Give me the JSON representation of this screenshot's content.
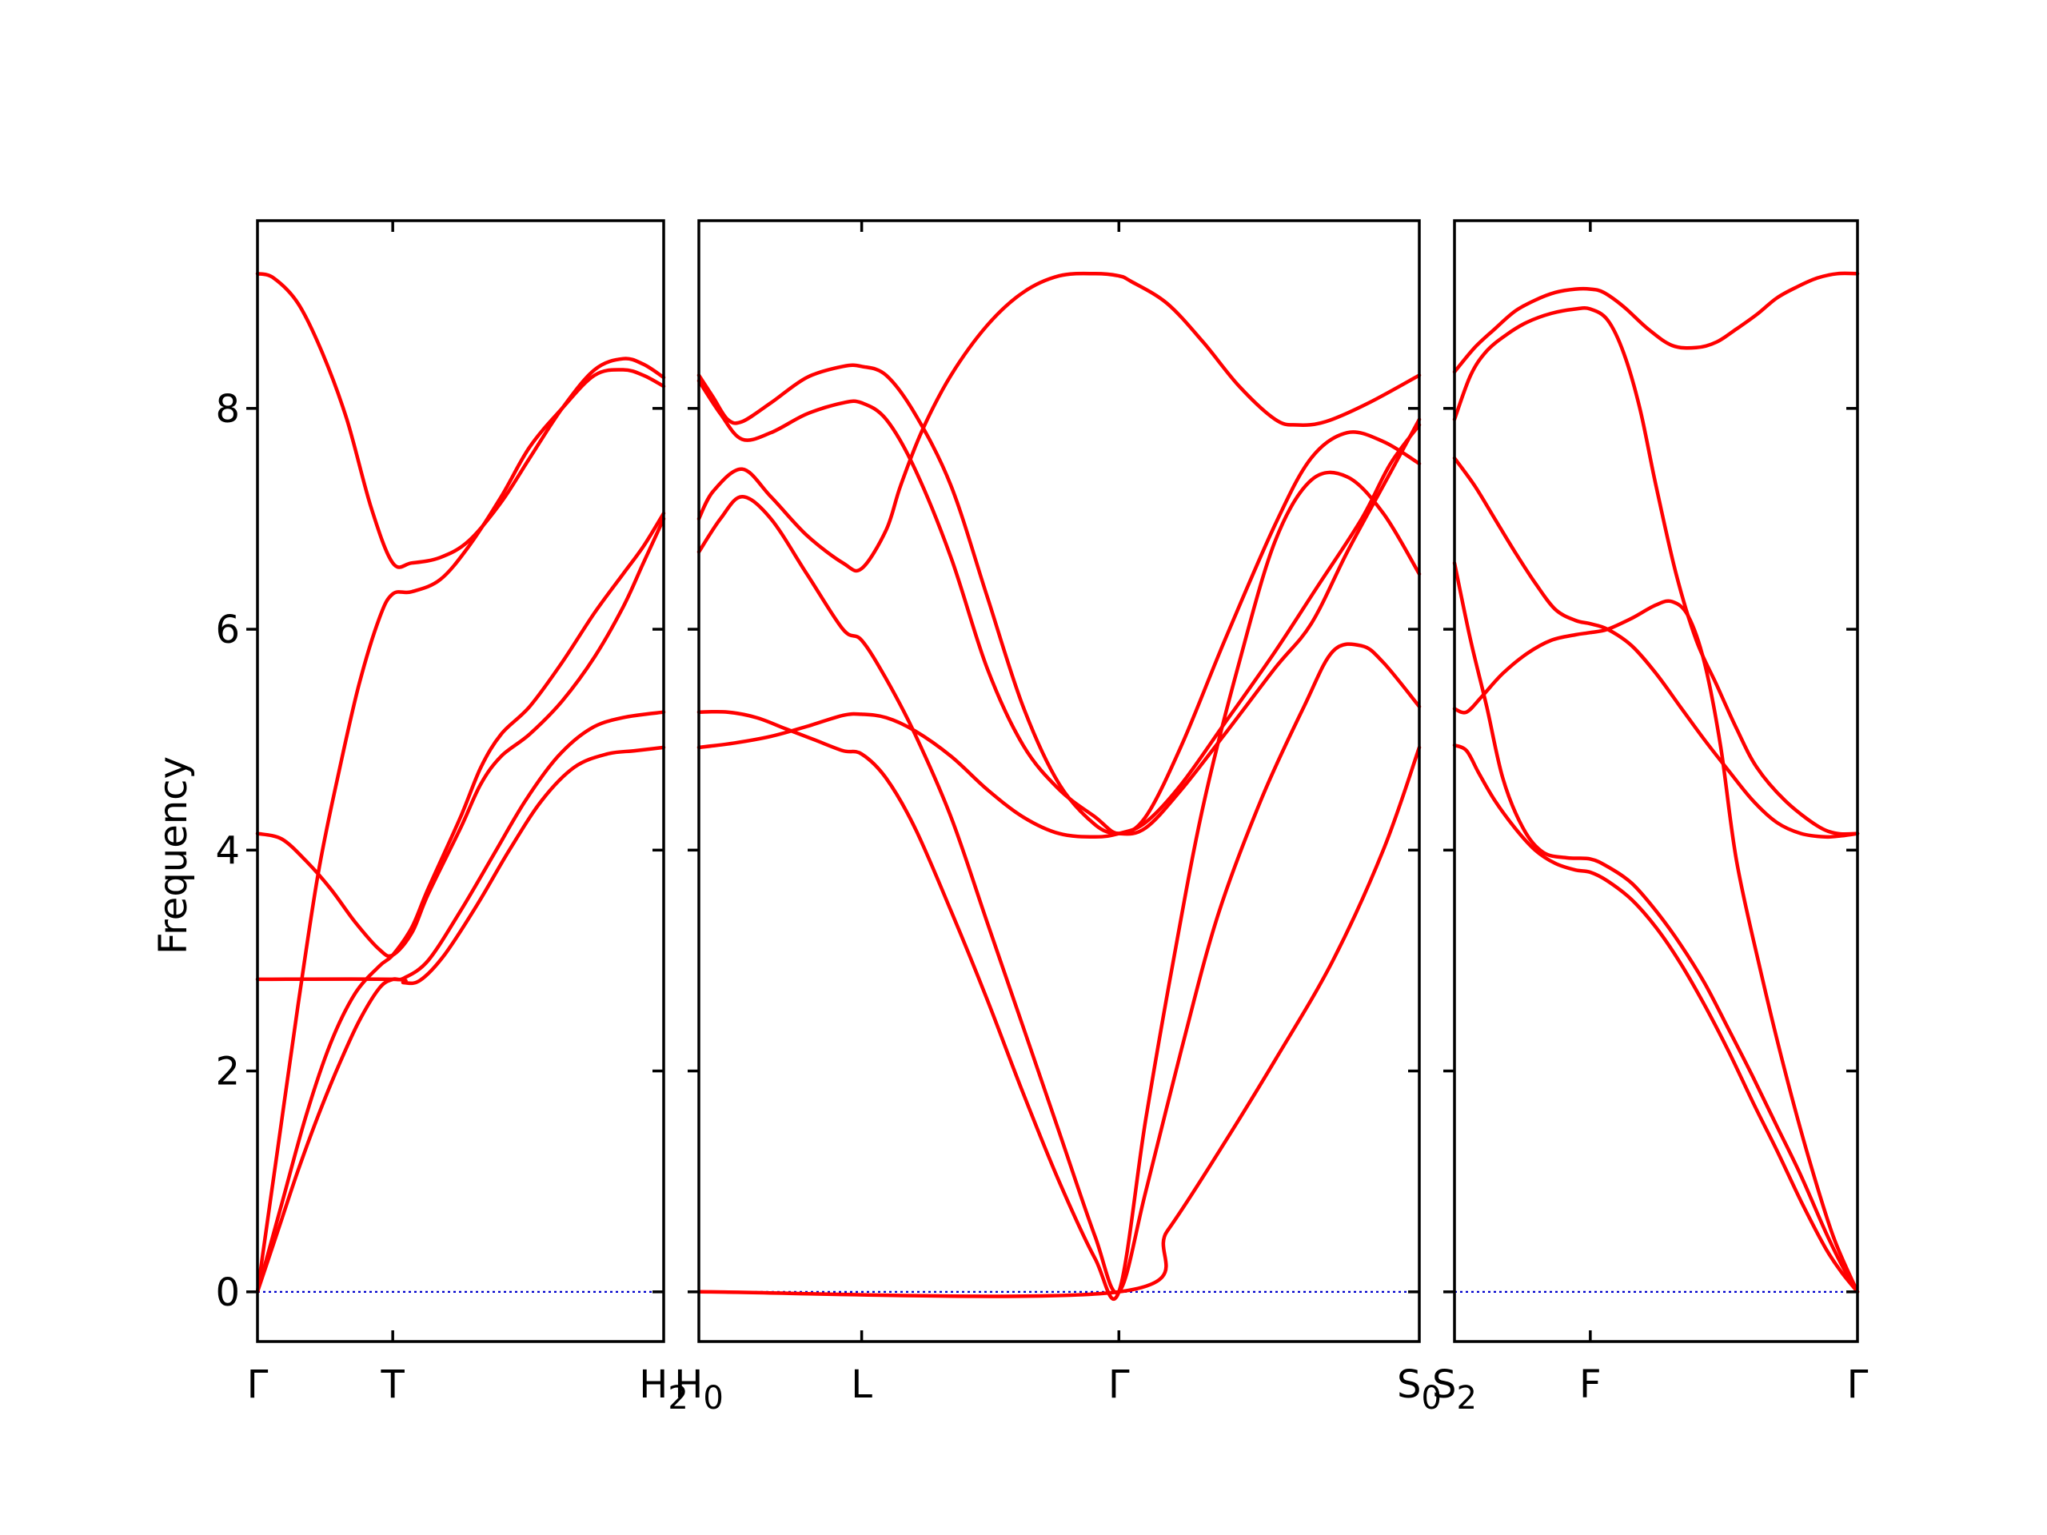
{
  "chart_data": {
    "type": "line",
    "ylabel": "Frequency",
    "ylim": [
      -0.45,
      9.7
    ],
    "yticks": [
      0,
      2,
      4,
      6,
      8
    ],
    "grid": false,
    "legend": "none",
    "colors": {
      "bands": "#ff0000",
      "zero_line": "#0000cc",
      "axes": "#000000"
    },
    "panels": [
      {
        "xlim": [
          0,
          1
        ],
        "ticks": [
          {
            "x": 0,
            "label": "Γ"
          },
          {
            "x": 0.333,
            "label": "T"
          },
          {
            "x": 1,
            "label": "H",
            "sub": "2"
          }
        ],
        "bands": [
          {
            "x": [
              0,
              0.04,
              0.1,
              0.16,
              0.22,
              0.28,
              0.333,
              0.38,
              0.45,
              0.52,
              0.6,
              0.67,
              0.75,
              0.83,
              0.9,
              0.95,
              1
            ],
            "y": [
              9.22,
              9.18,
              8.95,
              8.5,
              7.9,
              7.1,
              6.6,
              6.6,
              6.65,
              6.8,
              7.15,
              7.55,
              8.0,
              8.35,
              8.45,
              8.4,
              8.28
            ]
          },
          {
            "x": [
              0,
              0.05,
              0.1,
              0.15,
              0.2,
              0.25,
              0.3,
              0.333,
              0.38,
              0.45,
              0.52,
              0.6,
              0.67,
              0.75,
              0.83,
              0.9,
              0.95,
              1
            ],
            "y": [
              0.0,
              1.3,
              2.6,
              3.8,
              4.7,
              5.5,
              6.1,
              6.32,
              6.34,
              6.45,
              6.75,
              7.2,
              7.65,
              8.0,
              8.3,
              8.35,
              8.3,
              8.2
            ]
          },
          {
            "x": [
              0,
              0.06,
              0.12,
              0.18,
              0.24,
              0.3,
              0.333,
              0.38,
              0.42,
              0.5,
              0.55,
              0.6,
              0.67,
              0.75,
              0.83,
              0.9,
              0.95,
              1
            ],
            "y": [
              4.15,
              4.1,
              3.9,
              3.65,
              3.35,
              3.1,
              3.05,
              3.25,
              3.6,
              4.2,
              4.6,
              4.85,
              5.05,
              5.35,
              5.75,
              6.2,
              6.6,
              7.0
            ]
          },
          {
            "x": [
              0,
              0.06,
              0.12,
              0.18,
              0.24,
              0.3,
              0.333,
              0.38,
              0.42,
              0.5,
              0.55,
              0.6,
              0.67,
              0.75,
              0.83,
              0.9,
              0.95,
              1
            ],
            "y": [
              0.0,
              0.8,
              1.6,
              2.25,
              2.7,
              2.95,
              3.05,
              3.3,
              3.65,
              4.3,
              4.75,
              5.05,
              5.3,
              5.7,
              6.15,
              6.5,
              6.75,
              7.05
            ]
          },
          {
            "x": [
              0,
              0.05,
              0.1,
              0.15,
              0.2,
              0.25,
              0.3,
              0.333,
              0.36,
              0.42,
              0.5,
              0.58,
              0.66,
              0.74,
              0.82,
              0.9,
              1
            ],
            "y": [
              0.0,
              0.55,
              1.1,
              1.6,
              2.05,
              2.45,
              2.75,
              2.83,
              2.84,
              3.0,
              3.45,
              3.95,
              4.45,
              4.85,
              5.1,
              5.2,
              5.25
            ]
          },
          {
            "x": [
              0,
              0.333,
              0.36,
              0.4,
              0.46,
              0.54,
              0.62,
              0.7,
              0.78,
              0.86,
              0.93,
              1
            ],
            "y": [
              2.83,
              2.83,
              2.8,
              2.82,
              3.05,
              3.5,
              4.0,
              4.45,
              4.75,
              4.87,
              4.9,
              4.93
            ]
          }
        ]
      },
      {
        "xlim": [
          0,
          1
        ],
        "ticks": [
          {
            "x": 0,
            "label": "H",
            "sub": "0"
          },
          {
            "x": 0.226,
            "label": "L"
          },
          {
            "x": 0.583,
            "label": "Γ"
          },
          {
            "x": 1,
            "label": "S",
            "sub": "0"
          }
        ],
        "bands": [
          {
            "x": [
              0,
              0.02,
              0.04,
              0.06,
              0.1,
              0.15,
              0.2,
              0.226,
              0.26,
              0.3,
              0.35,
              0.4,
              0.45,
              0.5,
              0.55,
              0.583,
              0.62,
              0.67,
              0.73,
              0.8,
              0.85,
              0.9,
              0.95,
              1
            ],
            "y": [
              8.3,
              8.1,
              7.9,
              7.88,
              8.05,
              8.28,
              8.38,
              8.38,
              8.3,
              7.95,
              7.3,
              6.3,
              5.3,
              4.6,
              4.23,
              4.15,
              4.2,
              4.55,
              5.05,
              5.65,
              6.05,
              6.7,
              7.3,
              7.9
            ]
          },
          {
            "x": [
              0,
              0.03,
              0.06,
              0.1,
              0.15,
              0.2,
              0.226,
              0.26,
              0.3,
              0.35,
              0.4,
              0.45,
              0.5,
              0.55,
              0.583,
              0.62,
              0.67,
              0.73,
              0.8,
              0.85,
              0.9,
              0.95,
              1
            ],
            "y": [
              8.25,
              7.95,
              7.72,
              7.78,
              7.95,
              8.05,
              8.05,
              7.9,
              7.45,
              6.65,
              5.65,
              4.95,
              4.55,
              4.3,
              4.15,
              4.3,
              4.95,
              5.9,
              6.95,
              7.55,
              7.78,
              7.7,
              7.5
            ]
          },
          {
            "x": [
              0,
              0.02,
              0.06,
              0.1,
              0.15,
              0.2,
              0.226,
              0.26,
              0.28,
              0.31,
              0.35,
              0.4,
              0.45,
              0.5,
              0.55,
              0.583,
              0.6,
              0.65,
              0.7,
              0.75,
              0.8,
              0.83,
              0.87,
              0.93,
              1
            ],
            "y": [
              7.0,
              7.25,
              7.45,
              7.2,
              6.85,
              6.6,
              6.55,
              6.9,
              7.3,
              7.8,
              8.3,
              8.75,
              9.05,
              9.2,
              9.22,
              9.2,
              9.15,
              8.95,
              8.6,
              8.2,
              7.9,
              7.85,
              7.88,
              8.05,
              8.3
            ]
          },
          {
            "x": [
              0,
              0.03,
              0.06,
              0.1,
              0.15,
              0.2,
              0.226,
              0.26,
              0.3,
              0.35,
              0.4,
              0.45,
              0.5,
              0.55,
              0.583,
              0.62,
              0.67,
              0.72,
              0.78,
              0.84,
              0.88,
              0.92,
              0.95,
              1
            ],
            "y": [
              6.7,
              7.0,
              7.2,
              7.0,
              6.5,
              6.0,
              5.9,
              5.55,
              5.05,
              4.3,
              3.35,
              2.4,
              1.45,
              0.5,
              0.0,
              0.9,
              2.2,
              3.4,
              4.45,
              5.3,
              5.8,
              5.85,
              5.7,
              5.3
            ]
          },
          {
            "x": [
              0,
              0.04,
              0.08,
              0.12,
              0.16,
              0.2,
              0.226,
              0.26,
              0.3,
              0.35,
              0.4,
              0.45,
              0.5,
              0.55,
              0.583,
              0.62,
              0.66,
              0.7,
              0.75,
              0.8,
              0.85,
              0.9,
              0.95,
              1
            ],
            "y": [
              5.25,
              5.25,
              5.2,
              5.1,
              5.0,
              4.9,
              4.87,
              4.65,
              4.2,
              3.45,
              2.65,
              1.8,
              1.0,
              0.3,
              0.0,
              1.55,
              3.05,
              4.4,
              5.7,
              6.8,
              7.35,
              7.38,
              7.05,
              6.5
            ]
          },
          {
            "x": [
              0,
              0.05,
              0.1,
              0.15,
              0.2,
              0.226,
              0.26,
              0.3,
              0.35,
              0.4,
              0.45,
              0.5,
              0.55,
              0.583,
              0.62,
              0.67,
              0.73,
              0.8,
              0.86,
              0.92,
              0.96,
              1
            ],
            "y": [
              4.93,
              4.97,
              5.03,
              5.12,
              5.22,
              5.23,
              5.2,
              5.08,
              4.85,
              4.55,
              4.3,
              4.15,
              4.12,
              4.15,
              4.25,
              4.6,
              5.15,
              5.8,
              6.4,
              7.0,
              7.5,
              7.85
            ]
          },
          {
            "x": [
              0,
              0.583,
              0.65,
              0.72,
              0.8,
              0.88,
              0.95,
              1
            ],
            "y": [
              0.0,
              0.0,
              0.55,
              1.25,
              2.1,
              3.0,
              4.0,
              4.93
            ]
          }
        ]
      },
      {
        "xlim": [
          0,
          1
        ],
        "ticks": [
          {
            "x": 0,
            "label": "S",
            "sub": "2"
          },
          {
            "x": 0.337,
            "label": "F"
          },
          {
            "x": 1,
            "label": "Γ"
          }
        ],
        "bands": [
          {
            "x": [
              0,
              0.05,
              0.1,
              0.15,
              0.2,
              0.25,
              0.3,
              0.337,
              0.37,
              0.42,
              0.48,
              0.54,
              0.6,
              0.65,
              0.7,
              0.75,
              0.8,
              0.85,
              0.9,
              0.95,
              1
            ],
            "y": [
              8.33,
              8.55,
              8.72,
              8.88,
              8.98,
              9.05,
              9.08,
              9.08,
              9.05,
              8.92,
              8.72,
              8.57,
              8.55,
              8.6,
              8.72,
              8.85,
              9.0,
              9.1,
              9.18,
              9.22,
              9.22
            ]
          },
          {
            "x": [
              0,
              0.04,
              0.08,
              0.13,
              0.18,
              0.24,
              0.3,
              0.337,
              0.38,
              0.42,
              0.46,
              0.5,
              0.55,
              0.6,
              0.65,
              0.7,
              0.75,
              0.82,
              0.9,
              0.95,
              1
            ],
            "y": [
              7.9,
              8.3,
              8.52,
              8.67,
              8.78,
              8.86,
              8.9,
              8.9,
              8.8,
              8.5,
              8.0,
              7.3,
              6.5,
              5.9,
              5.5,
              5.1,
              4.75,
              4.45,
              4.22,
              4.15,
              4.15
            ]
          },
          {
            "x": [
              0,
              0.05,
              0.1,
              0.15,
              0.2,
              0.25,
              0.3,
              0.337,
              0.38,
              0.44,
              0.5,
              0.56,
              0.62,
              0.68,
              0.74,
              0.8,
              0.86,
              0.92,
              0.96,
              1
            ],
            "y": [
              7.55,
              7.3,
              7.0,
              6.7,
              6.42,
              6.18,
              6.08,
              6.05,
              6.0,
              5.85,
              5.6,
              5.3,
              5.0,
              4.72,
              4.45,
              4.25,
              4.15,
              4.12,
              4.13,
              4.15
            ]
          },
          {
            "x": [
              0,
              0.03,
              0.07,
              0.12,
              0.18,
              0.24,
              0.3,
              0.337,
              0.38,
              0.44,
              0.5,
              0.54,
              0.58,
              0.62,
              0.66,
              0.7,
              0.76,
              0.82,
              0.88,
              0.94,
              1
            ],
            "y": [
              5.28,
              5.25,
              5.4,
              5.6,
              5.78,
              5.9,
              5.95,
              5.97,
              6.0,
              6.1,
              6.22,
              6.25,
              6.12,
              5.7,
              4.95,
              3.9,
              2.9,
              2.0,
              1.2,
              0.5,
              0.0
            ]
          },
          {
            "x": [
              0,
              0.04,
              0.08,
              0.12,
              0.17,
              0.22,
              0.28,
              0.337,
              0.38,
              0.44,
              0.5,
              0.56,
              0.62,
              0.68,
              0.74,
              0.8,
              0.86,
              0.92,
              0.96,
              1
            ],
            "y": [
              6.6,
              5.9,
              5.3,
              4.65,
              4.2,
              3.98,
              3.93,
              3.92,
              3.85,
              3.7,
              3.45,
              3.15,
              2.8,
              2.38,
              1.95,
              1.5,
              1.05,
              0.55,
              0.25,
              0.0
            ]
          },
          {
            "x": [
              0,
              0.03,
              0.06,
              0.1,
              0.15,
              0.2,
              0.25,
              0.3,
              0.337,
              0.38,
              0.44,
              0.5,
              0.56,
              0.62,
              0.68,
              0.74,
              0.8,
              0.86,
              0.92,
              0.96,
              1
            ],
            "y": [
              4.95,
              4.9,
              4.7,
              4.45,
              4.2,
              4.0,
              3.88,
              3.82,
              3.8,
              3.72,
              3.55,
              3.3,
              2.98,
              2.6,
              2.18,
              1.72,
              1.28,
              0.82,
              0.4,
              0.18,
              0.0
            ]
          }
        ]
      }
    ]
  }
}
